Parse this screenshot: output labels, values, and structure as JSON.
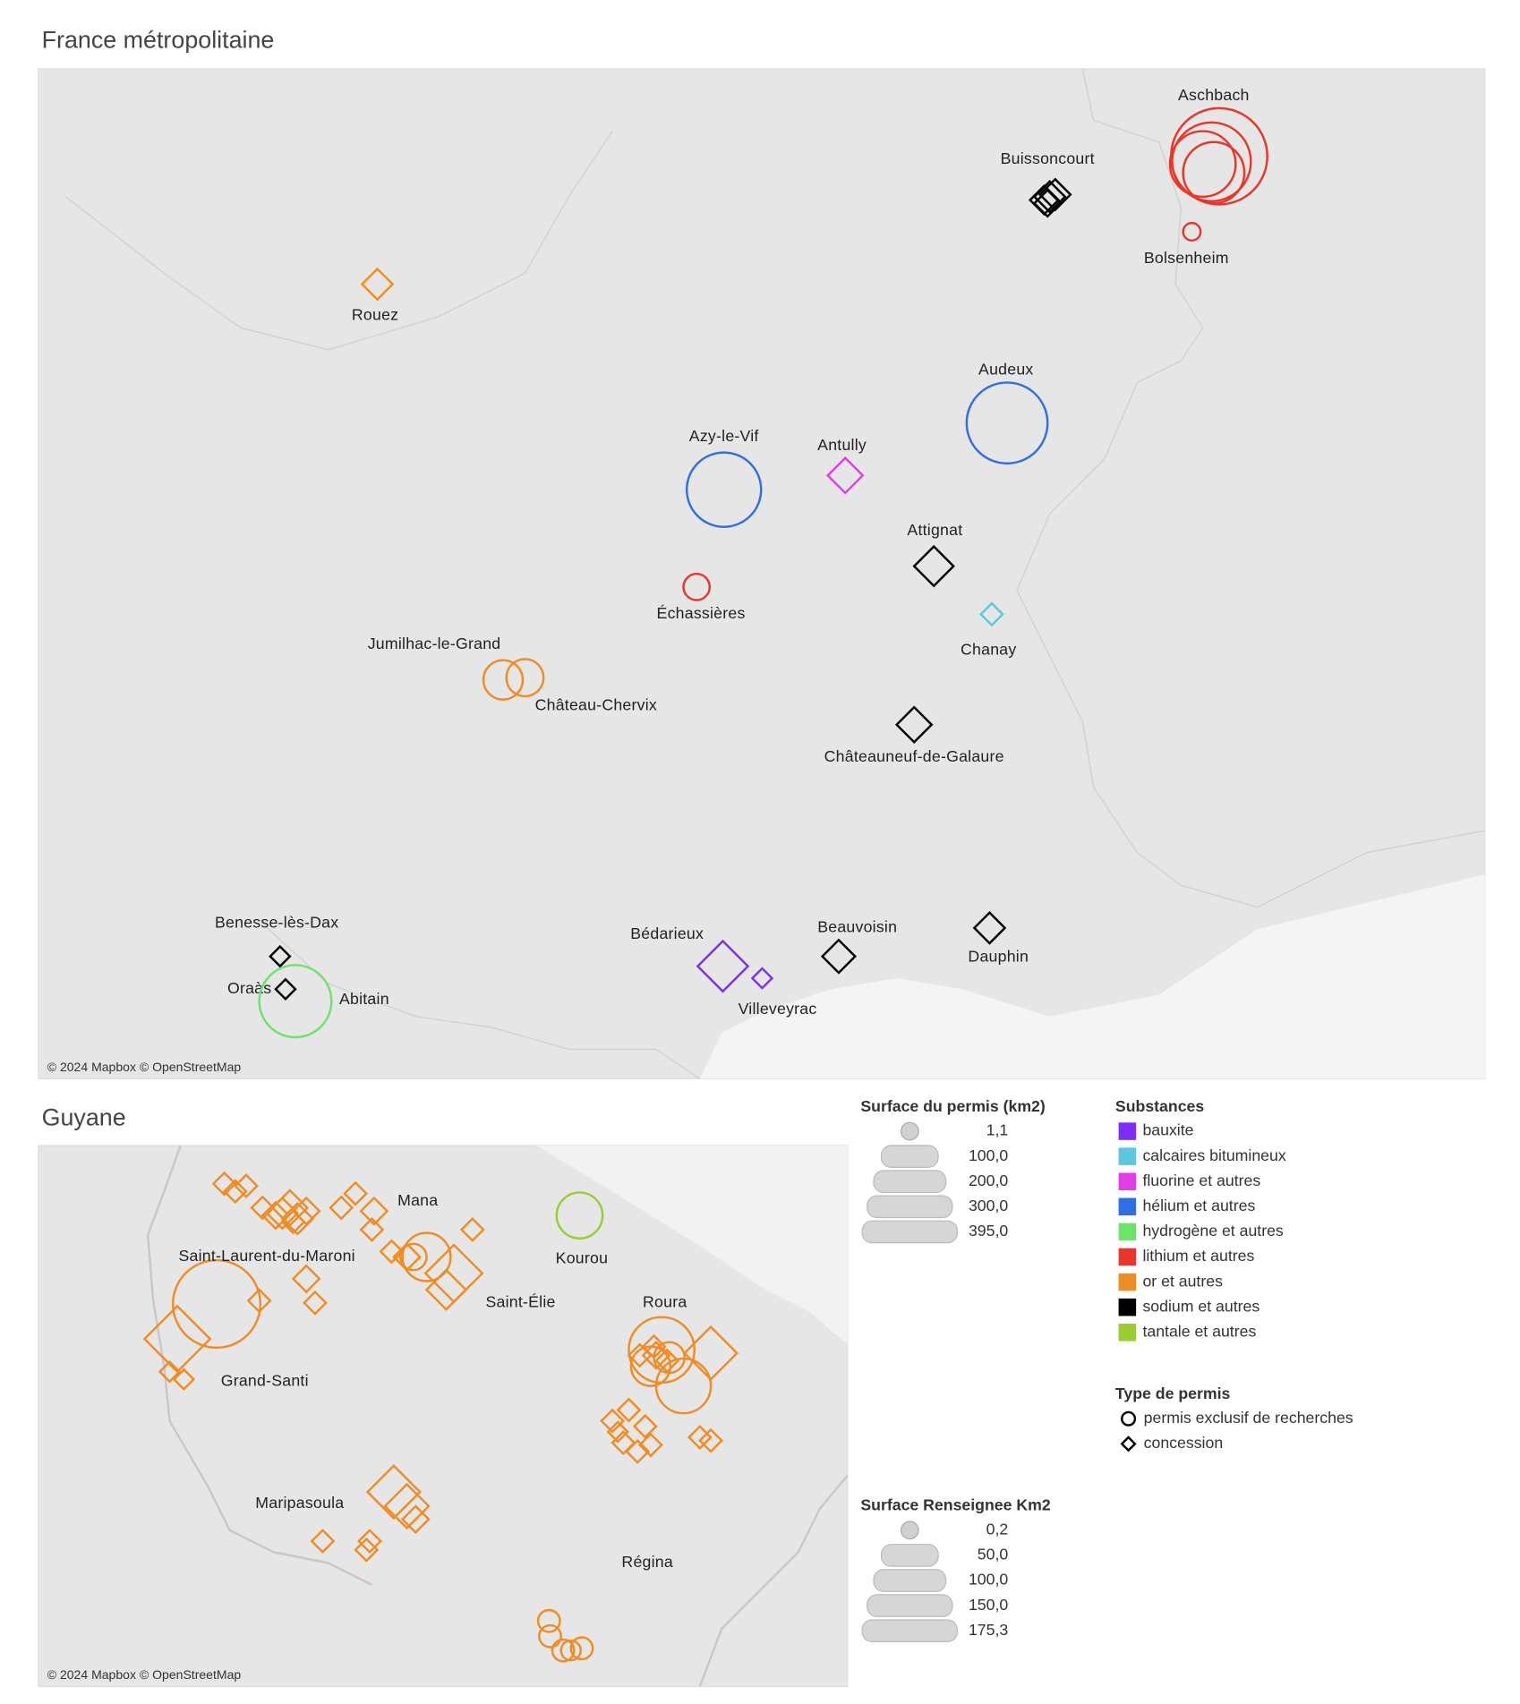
{
  "france": {
    "title": "France métropolitaine",
    "attribution": "© 2024 Mapbox © OpenStreetMap",
    "places": [
      {
        "label": "Aschbach",
        "substance": "lithium et autres",
        "type": "permis exclusif de recherches"
      },
      {
        "label": "Buissoncourt",
        "substance": "sodium et autres",
        "type": "concession"
      },
      {
        "label": "Bolsenheim",
        "substance": "lithium et autres",
        "type": "permis exclusif de recherches"
      },
      {
        "label": "Rouez",
        "substance": "or et autres",
        "type": "concession"
      },
      {
        "label": "Audeux",
        "substance": "hélium et autres",
        "type": "permis exclusif de recherches"
      },
      {
        "label": "Azy-le-Vif",
        "substance": "hélium et autres",
        "type": "permis exclusif de recherches"
      },
      {
        "label": "Antully",
        "substance": "fluorine et autres",
        "type": "concession"
      },
      {
        "label": "Attignat",
        "substance": "sodium et autres",
        "type": "concession"
      },
      {
        "label": "Échassières",
        "substance": "lithium et autres",
        "type": "permis exclusif de recherches"
      },
      {
        "label": "Chanay",
        "substance": "calcaires bitumineux",
        "type": "concession"
      },
      {
        "label": "Jumilhac-le-Grand",
        "substance": "or et autres",
        "type": "permis exclusif de recherches"
      },
      {
        "label": "Château-Chervix",
        "substance": "or et autres",
        "type": "permis exclusif de recherches"
      },
      {
        "label": "Châteauneuf-de-Galaure",
        "substance": "sodium et autres",
        "type": "concession"
      },
      {
        "label": "Benesse-lès-Dax",
        "substance": "sodium et autres",
        "type": "concession"
      },
      {
        "label": "Oraàs",
        "substance": "sodium et autres",
        "type": "concession"
      },
      {
        "label": "Abitain",
        "substance": "hydrogène et autres",
        "type": "permis exclusif de recherches"
      },
      {
        "label": "Bédarieux",
        "substance": "bauxite",
        "type": "concession"
      },
      {
        "label": "Villeveyrac",
        "substance": "bauxite",
        "type": "concession"
      },
      {
        "label": "Beauvoisin",
        "substance": "sodium et autres",
        "type": "concession"
      },
      {
        "label": "Dauphin",
        "substance": "sodium et autres",
        "type": "concession"
      }
    ]
  },
  "guyane": {
    "title": "Guyane",
    "attribution": "© 2024 Mapbox © OpenStreetMap",
    "places": [
      "Mana",
      "Saint-Laurent-du-Maroni",
      "Kourou",
      "Saint-Élie",
      "Roura",
      "Grand-Santi",
      "Maripasoula",
      "Régina"
    ]
  },
  "legend": {
    "surface_permis": {
      "title": "Surface du permis (km2)",
      "entries": [
        "1,1",
        "100,0",
        "200,0",
        "300,0",
        "395,0"
      ]
    },
    "substances": {
      "title": "Substances",
      "entries": [
        {
          "label": "bauxite",
          "color": "#7b2ff7"
        },
        {
          "label": "calcaires bitumineux",
          "color": "#5cc8e0"
        },
        {
          "label": "fluorine et autres",
          "color": "#e23ee8"
        },
        {
          "label": "hélium et autres",
          "color": "#2f6fe3"
        },
        {
          "label": "hydrogène et autres",
          "color": "#6ee36a"
        },
        {
          "label": "lithium et autres",
          "color": "#e8362b"
        },
        {
          "label": "or et autres",
          "color": "#f08c24"
        },
        {
          "label": "sodium et autres",
          "color": "#000000"
        },
        {
          "label": "tantale et autres",
          "color": "#9acd32"
        }
      ]
    },
    "type_permis": {
      "title": "Type de permis",
      "entries": [
        "permis exclusif de recherches",
        "concession"
      ]
    },
    "surface_renseignee": {
      "title": "Surface Renseignee Km2",
      "entries": [
        "0,2",
        "50,0",
        "100,0",
        "150,0",
        "175,3"
      ]
    }
  }
}
